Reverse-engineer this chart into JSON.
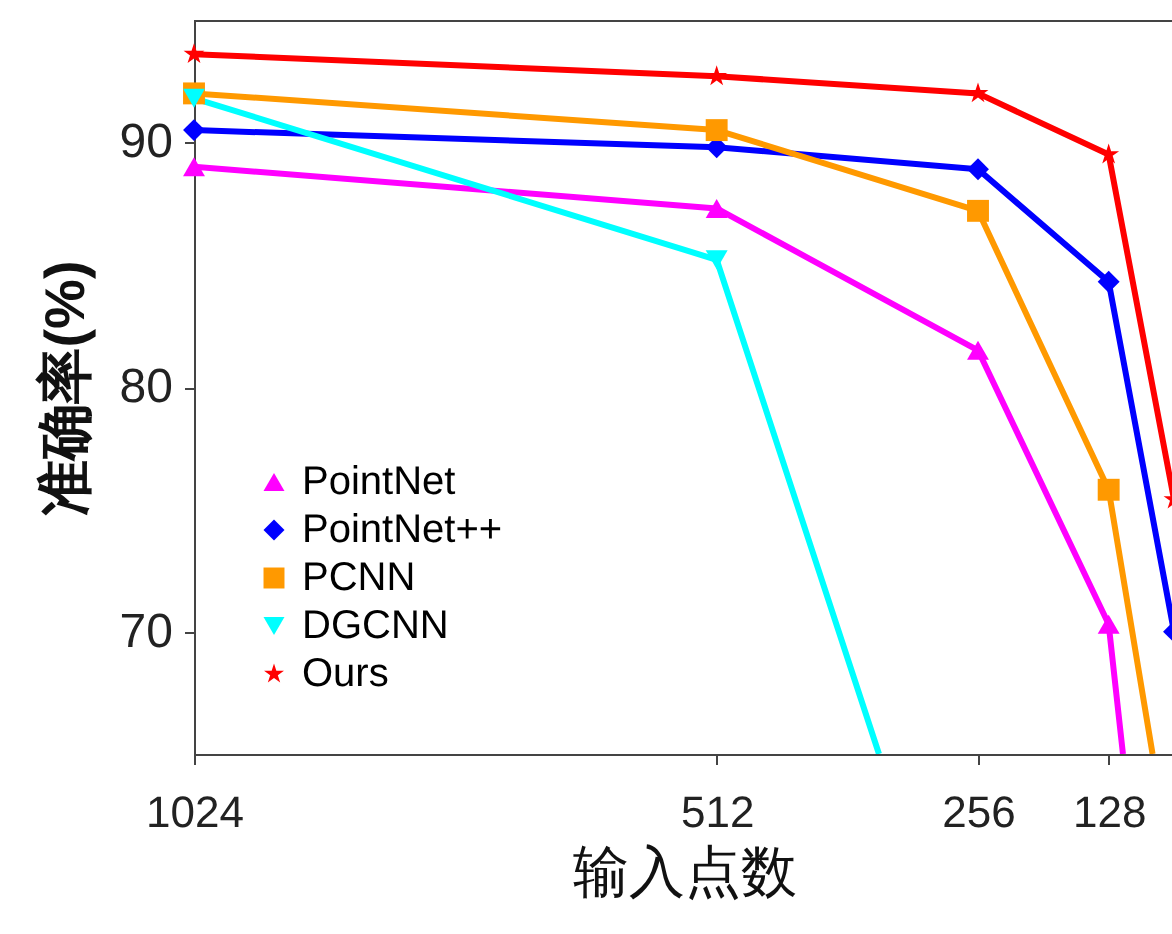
{
  "chart_data": {
    "type": "line",
    "xlabel": "输入点数",
    "ylabel": "准确率(%)",
    "xlim": [
      1024,
      64
    ],
    "xticks": [
      1024,
      512,
      256,
      128
    ],
    "ylim": [
      65,
      95
    ],
    "yticks": [
      70,
      80,
      90
    ],
    "grid": false,
    "legend": "bottom left",
    "line_style": "solid",
    "series": [
      {
        "name": "PointNet",
        "color": "#ff00ff",
        "marker": "triangle",
        "x": [
          1024,
          512,
          256,
          128,
          114
        ],
        "values": [
          89.0,
          87.3,
          81.5,
          70.3,
          65
        ]
      },
      {
        "name": "PointNet++",
        "color": "#0000ff",
        "marker": "diamond",
        "x": [
          1024,
          512,
          256,
          128,
          64
        ],
        "values": [
          90.5,
          89.8,
          88.9,
          84.3,
          70.0
        ]
      },
      {
        "name": "PCNN",
        "color": "#ff9900",
        "marker": "square",
        "x": [
          1024,
          512,
          256,
          128,
          85
        ],
        "values": [
          92.0,
          90.5,
          87.2,
          75.8,
          65
        ]
      },
      {
        "name": "DGCNN",
        "color": "#00ffff",
        "marker": "triangle-down",
        "x": [
          1024,
          512,
          353
        ],
        "values": [
          91.8,
          85.2,
          65
        ]
      },
      {
        "name": "Ours",
        "color": "#ff0000",
        "marker": "star",
        "x": [
          1024,
          512,
          256,
          128,
          64
        ],
        "values": [
          93.6,
          92.7,
          92.0,
          89.5,
          75.4
        ]
      }
    ]
  }
}
